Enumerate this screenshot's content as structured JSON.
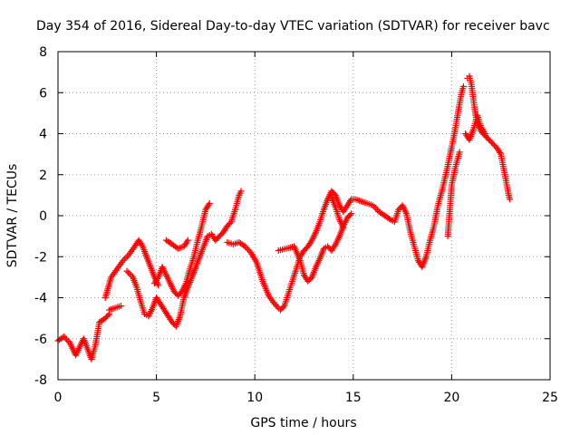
{
  "chart_data": {
    "type": "scatter",
    "title": "Day 354 of 2016, Sidereal Day-to-day VTEC variation (SDTVAR) for receiver bavc",
    "xlabel": "GPS time / hours",
    "ylabel": "SDTVAR / TECUs",
    "xlim": [
      0,
      25
    ],
    "ylim": [
      -8,
      8
    ],
    "x_ticks": [
      "0",
      "5",
      "10",
      "15",
      "20",
      "25"
    ],
    "y_ticks": [
      "-8",
      "-6",
      "-4",
      "-2",
      "0",
      "2",
      "4",
      "6",
      "8"
    ],
    "grid": true,
    "marker": "plus",
    "color": "#ff0000",
    "segments": [
      {
        "points": [
          [
            0.0,
            -6.1
          ],
          [
            0.3,
            -5.9
          ],
          [
            0.6,
            -6.2
          ],
          [
            0.9,
            -6.8
          ],
          [
            1.1,
            -6.4
          ],
          [
            1.3,
            -6.0
          ],
          [
            1.5,
            -6.5
          ],
          [
            1.7,
            -7.0
          ],
          [
            1.9,
            -6.3
          ],
          [
            2.1,
            -5.2
          ],
          [
            2.4,
            -5.0
          ],
          [
            2.6,
            -4.8
          ]
        ]
      },
      {
        "points": [
          [
            2.4,
            -4.0
          ],
          [
            2.7,
            -3.0
          ],
          [
            3.0,
            -2.6
          ],
          [
            3.3,
            -2.2
          ],
          [
            3.6,
            -1.9
          ],
          [
            3.9,
            -1.5
          ],
          [
            4.1,
            -1.2
          ],
          [
            4.3,
            -1.5
          ],
          [
            4.5,
            -2.0
          ],
          [
            4.7,
            -2.5
          ],
          [
            4.9,
            -3.0
          ],
          [
            5.1,
            -3.4
          ]
        ]
      },
      {
        "points": [
          [
            2.6,
            -4.6
          ],
          [
            2.9,
            -4.5
          ],
          [
            3.2,
            -4.4
          ]
        ]
      },
      {
        "points": [
          [
            3.5,
            -2.7
          ],
          [
            3.8,
            -3.0
          ],
          [
            4.0,
            -3.5
          ],
          [
            4.2,
            -4.2
          ],
          [
            4.4,
            -4.8
          ],
          [
            4.6,
            -4.9
          ],
          [
            4.8,
            -4.5
          ],
          [
            5.0,
            -4.0
          ],
          [
            5.2,
            -4.3
          ],
          [
            5.4,
            -4.6
          ],
          [
            5.6,
            -4.9
          ],
          [
            5.8,
            -5.2
          ],
          [
            6.0,
            -5.4
          ],
          [
            6.2,
            -4.9
          ],
          [
            6.4,
            -4.0
          ],
          [
            6.6,
            -3.5
          ],
          [
            6.8,
            -3.0
          ],
          [
            7.0,
            -2.5
          ],
          [
            7.2,
            -2.0
          ],
          [
            7.4,
            -1.5
          ],
          [
            7.6,
            -1.0
          ],
          [
            7.8,
            -0.9
          ],
          [
            8.0,
            -1.2
          ],
          [
            8.2,
            -1.0
          ],
          [
            8.4,
            -0.8
          ],
          [
            8.6,
            -0.5
          ],
          [
            8.8,
            -0.3
          ],
          [
            9.0,
            0.3
          ],
          [
            9.2,
            1.0
          ],
          [
            9.3,
            1.2
          ]
        ]
      },
      {
        "points": [
          [
            4.9,
            -3.3
          ],
          [
            5.1,
            -3.0
          ],
          [
            5.3,
            -2.5
          ],
          [
            5.5,
            -2.9
          ],
          [
            5.7,
            -3.3
          ],
          [
            5.9,
            -3.7
          ],
          [
            6.1,
            -3.9
          ],
          [
            6.3,
            -3.7
          ],
          [
            6.5,
            -3.3
          ],
          [
            6.7,
            -2.6
          ],
          [
            6.9,
            -2.0
          ],
          [
            7.1,
            -1.2
          ],
          [
            7.3,
            -0.5
          ],
          [
            7.5,
            0.3
          ],
          [
            7.7,
            0.6
          ]
        ]
      },
      {
        "points": [
          [
            5.5,
            -1.2
          ],
          [
            5.8,
            -1.4
          ],
          [
            6.1,
            -1.6
          ],
          [
            6.4,
            -1.5
          ],
          [
            6.6,
            -1.2
          ]
        ]
      },
      {
        "points": [
          [
            8.6,
            -1.3
          ],
          [
            8.9,
            -1.4
          ],
          [
            9.2,
            -1.3
          ],
          [
            9.5,
            -1.5
          ],
          [
            9.8,
            -1.8
          ],
          [
            10.1,
            -2.3
          ],
          [
            10.4,
            -3.2
          ],
          [
            10.7,
            -3.9
          ],
          [
            11.0,
            -4.3
          ],
          [
            11.3,
            -4.6
          ],
          [
            11.5,
            -4.4
          ],
          [
            11.7,
            -3.8
          ],
          [
            11.9,
            -3.2
          ],
          [
            12.1,
            -2.6
          ],
          [
            12.3,
            -2.0
          ],
          [
            12.5,
            -1.7
          ],
          [
            12.7,
            -1.5
          ],
          [
            12.9,
            -1.2
          ],
          [
            13.1,
            -0.8
          ],
          [
            13.3,
            -0.3
          ],
          [
            13.5,
            0.3
          ],
          [
            13.7,
            0.8
          ],
          [
            13.9,
            1.2
          ],
          [
            14.1,
            1.0
          ],
          [
            14.3,
            0.5
          ],
          [
            14.5,
            0.2
          ],
          [
            14.7,
            0.5
          ],
          [
            14.9,
            0.8
          ],
          [
            15.1,
            0.8
          ],
          [
            15.4,
            0.7
          ],
          [
            15.7,
            0.6
          ],
          [
            16.0,
            0.5
          ],
          [
            16.3,
            0.2
          ],
          [
            16.6,
            0.0
          ],
          [
            16.9,
            -0.2
          ],
          [
            17.1,
            -0.3
          ],
          [
            17.3,
            0.3
          ],
          [
            17.5,
            0.5
          ],
          [
            17.7,
            0.1
          ],
          [
            17.9,
            -0.8
          ],
          [
            18.1,
            -1.5
          ],
          [
            18.3,
            -2.2
          ],
          [
            18.5,
            -2.5
          ],
          [
            18.7,
            -2.0
          ],
          [
            18.9,
            -1.2
          ],
          [
            19.1,
            -0.5
          ],
          [
            19.3,
            0.5
          ],
          [
            19.5,
            1.2
          ],
          [
            19.7,
            2.0
          ],
          [
            19.9,
            2.9
          ],
          [
            20.1,
            3.8
          ],
          [
            20.3,
            4.9
          ],
          [
            20.5,
            6.0
          ],
          [
            20.6,
            6.3
          ]
        ]
      },
      {
        "points": [
          [
            11.2,
            -1.7
          ],
          [
            11.6,
            -1.6
          ],
          [
            12.0,
            -1.5
          ],
          [
            12.3,
            -2.2
          ],
          [
            12.5,
            -2.9
          ],
          [
            12.7,
            -3.2
          ],
          [
            12.9,
            -3.0
          ],
          [
            13.1,
            -2.5
          ],
          [
            13.3,
            -2.1
          ],
          [
            13.5,
            -1.6
          ],
          [
            13.7,
            -1.5
          ],
          [
            13.9,
            -1.7
          ],
          [
            14.1,
            -1.4
          ],
          [
            14.3,
            -1.0
          ],
          [
            14.5,
            -0.5
          ],
          [
            14.7,
            -0.1
          ],
          [
            14.9,
            0.1
          ]
        ]
      },
      {
        "points": [
          [
            13.9,
            0.9
          ],
          [
            14.1,
            0.4
          ],
          [
            14.3,
            -0.2
          ],
          [
            14.5,
            -0.6
          ]
        ]
      },
      {
        "points": [
          [
            19.8,
            -1.0
          ],
          [
            19.9,
            0.2
          ],
          [
            20.0,
            1.5
          ],
          [
            20.2,
            2.4
          ],
          [
            20.4,
            3.1
          ]
        ]
      },
      {
        "points": [
          [
            20.8,
            6.7
          ],
          [
            20.9,
            6.8
          ],
          [
            21.0,
            6.4
          ],
          [
            21.1,
            5.7
          ],
          [
            21.2,
            5.0
          ],
          [
            21.3,
            4.5
          ],
          [
            21.5,
            4.1
          ],
          [
            21.7,
            3.9
          ],
          [
            21.9,
            3.7
          ],
          [
            22.1,
            3.5
          ],
          [
            22.3,
            3.3
          ],
          [
            22.5,
            3.0
          ],
          [
            22.6,
            2.5
          ],
          [
            22.7,
            2.0
          ],
          [
            22.8,
            1.5
          ],
          [
            22.9,
            1.0
          ],
          [
            22.95,
            0.8
          ]
        ]
      },
      {
        "points": [
          [
            20.7,
            4.0
          ],
          [
            20.9,
            3.7
          ],
          [
            21.1,
            4.2
          ],
          [
            21.3,
            4.9
          ],
          [
            21.5,
            4.3
          ],
          [
            21.7,
            4.0
          ]
        ]
      }
    ]
  }
}
